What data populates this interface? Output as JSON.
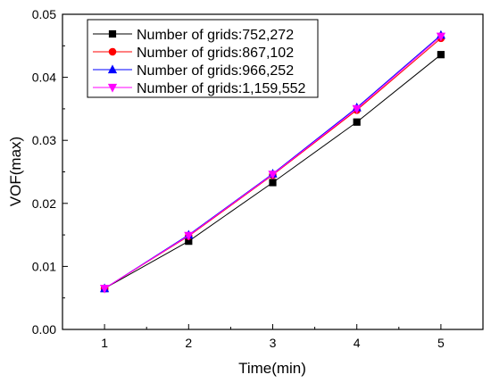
{
  "chart_data": {
    "type": "line",
    "xlabel": "Time(min)",
    "ylabel": "VOF(max)",
    "xlim": [
      0.5,
      5.5
    ],
    "ylim": [
      0.0,
      0.05
    ],
    "x_ticks": [
      1,
      2,
      3,
      4,
      5
    ],
    "x_tick_labels": [
      "1",
      "2",
      "3",
      "4",
      "5"
    ],
    "y_ticks": [
      0.0,
      0.01,
      0.02,
      0.03,
      0.04,
      0.05
    ],
    "y_tick_labels": [
      "0.00",
      "0.01",
      "0.02",
      "0.03",
      "0.04",
      "0.05"
    ],
    "grid": false,
    "legend_position": "top-left",
    "x": [
      1,
      2,
      3,
      4,
      5
    ],
    "series": [
      {
        "name": "Number of grids:752,272",
        "color": "#000000",
        "marker": "square",
        "values": [
          0.0065,
          0.014,
          0.0233,
          0.0329,
          0.0436
        ]
      },
      {
        "name": "Number of grids:867,102",
        "color": "#ff0000",
        "marker": "circle",
        "values": [
          0.0065,
          0.0148,
          0.0245,
          0.0348,
          0.0462
        ]
      },
      {
        "name": "Number of grids:966,252",
        "color": "#0000ff",
        "marker": "triangle-up",
        "values": [
          0.0065,
          0.015,
          0.0247,
          0.0352,
          0.0467
        ]
      },
      {
        "name": "Number of grids:1,159,552",
        "color": "#ff00ff",
        "marker": "triangle-down",
        "values": [
          0.0065,
          0.0149,
          0.0246,
          0.035,
          0.0465
        ]
      }
    ]
  }
}
